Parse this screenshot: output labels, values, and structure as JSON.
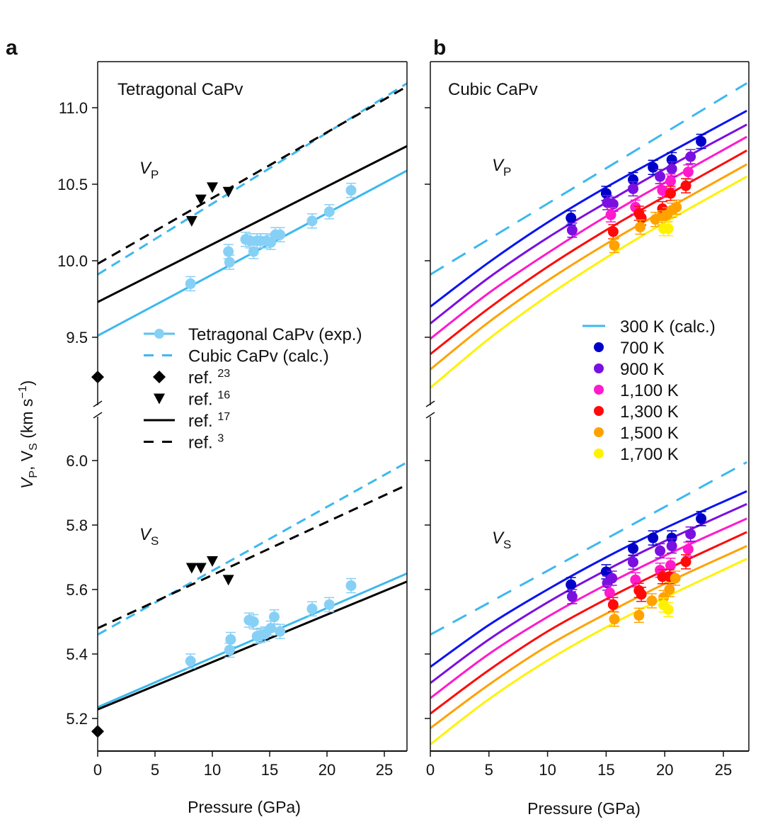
{
  "chart_data": [
    {
      "panel": "a",
      "type": "line",
      "title": "Tetragonal CaPv",
      "xlabel": "Pressure (GPa)",
      "ylabel": "V_P, V_S (km s^-1)",
      "xlim": [
        0,
        27
      ],
      "xticks": [
        0,
        5,
        10,
        15,
        20,
        25
      ],
      "ylim_upper": [
        9.2,
        11.3
      ],
      "ylim_lower": [
        5.1,
        6.1
      ],
      "yticks_upper": [
        "9.5",
        "10.0",
        "10.5",
        "11.0"
      ],
      "yticks_lower": [
        "5.2",
        "5.4",
        "5.6",
        "5.8",
        "6.0"
      ],
      "annotations": [
        {
          "text": "V",
          "sub": "P",
          "x": 2.0,
          "y": 10.6
        },
        {
          "text": "V",
          "sub": "S",
          "x": 2.0,
          "y": 5.77
        }
      ],
      "legend": {
        "placement": "center-right",
        "entries": [
          {
            "label": "Tetragonal CaPv (exp.)",
            "style": "line-marker",
            "color": "#5BC2EE",
            "marker_color": "#87D0F5"
          },
          {
            "label": "Cubic CaPv (calc.)",
            "style": "dashed",
            "color": "#3DB8EE"
          },
          {
            "label": "ref.",
            "ref": "23",
            "style": "diamond",
            "color": "#000000"
          },
          {
            "label": "ref.",
            "ref": "16",
            "style": "triangle-down",
            "color": "#000000"
          },
          {
            "label": "ref.",
            "ref": "17",
            "style": "solid",
            "color": "#000000"
          },
          {
            "label": "ref.",
            "ref": "3",
            "style": "dashed",
            "color": "#000000"
          }
        ]
      },
      "series": [
        {
          "name": "Tetragonal CaPv (exp.) fit VP",
          "kind": "line",
          "color": "#3DB8EE",
          "dash": false,
          "x": [
            0,
            27
          ],
          "y": [
            9.51,
            10.59
          ]
        },
        {
          "name": "Cubic CaPv (calc.) VP",
          "kind": "line",
          "color": "#3DB8EE",
          "dash": true,
          "x": [
            0,
            27
          ],
          "y": [
            9.91,
            11.16
          ]
        },
        {
          "name": "ref. 17 VP",
          "kind": "line",
          "color": "#000000",
          "dash": false,
          "x": [
            0,
            27
          ],
          "y": [
            9.73,
            10.75
          ]
        },
        {
          "name": "ref. 3 VP",
          "kind": "line",
          "color": "#000000",
          "dash": true,
          "x": [
            0,
            27
          ],
          "y": [
            9.98,
            11.14
          ]
        },
        {
          "name": "Tetragonal CaPv (exp.) fit VS",
          "kind": "line",
          "color": "#3DB8EE",
          "dash": false,
          "x": [
            0,
            27
          ],
          "y": [
            5.235,
            5.65
          ]
        },
        {
          "name": "Cubic CaPv (calc.) VS",
          "kind": "line",
          "color": "#3DB8EE",
          "dash": true,
          "x": [
            0,
            27
          ],
          "y": [
            5.46,
            5.995
          ]
        },
        {
          "name": "ref. 17 VS",
          "kind": "line",
          "color": "#000000",
          "dash": false,
          "x": [
            0,
            27
          ],
          "y": [
            5.228,
            5.625
          ]
        },
        {
          "name": "ref. 3 VS",
          "kind": "line",
          "color": "#000000",
          "dash": true,
          "x": [
            0,
            27
          ],
          "y": [
            5.48,
            5.925
          ]
        },
        {
          "name": "Tetragonal CaPv (exp.) VP",
          "kind": "points",
          "marker": "circle",
          "color": "#87D0F5",
          "x": [
            8.1,
            11.4,
            11.5,
            12.9,
            13.3,
            13.6,
            13.9,
            14.2,
            14.7,
            15.1,
            15.5,
            15.9,
            18.7,
            20.2,
            22.1
          ],
          "y": [
            9.85,
            10.06,
            9.99,
            10.14,
            10.13,
            10.06,
            10.13,
            10.13,
            10.13,
            10.12,
            10.17,
            10.17,
            10.26,
            10.32,
            10.46
          ]
        },
        {
          "name": "Tetragonal CaPv (exp.) VS",
          "kind": "points",
          "marker": "circle",
          "color": "#87D0F5",
          "x": [
            8.1,
            11.5,
            11.6,
            13.2,
            13.6,
            13.9,
            14.2,
            14.6,
            15.1,
            15.4,
            15.9,
            18.7,
            20.2,
            22.1
          ],
          "y": [
            5.378,
            5.412,
            5.445,
            5.505,
            5.5,
            5.455,
            5.458,
            5.462,
            5.48,
            5.515,
            5.47,
            5.54,
            5.553,
            5.612
          ]
        },
        {
          "name": "ref. 16 VP",
          "kind": "points",
          "marker": "triangle-down",
          "color": "#000000",
          "x": [
            8.2,
            9.0,
            10.0,
            11.4
          ],
          "y": [
            10.26,
            10.4,
            10.48,
            10.45
          ]
        },
        {
          "name": "ref. 16 VS",
          "kind": "points",
          "marker": "triangle-down",
          "color": "#000000",
          "x": [
            8.2,
            9.0,
            10.0,
            11.4
          ],
          "y": [
            5.667,
            5.667,
            5.688,
            5.63
          ]
        },
        {
          "name": "ref. 23 VP",
          "kind": "points",
          "marker": "diamond",
          "color": "#000000",
          "x": [
            0
          ],
          "y": [
            9.24
          ]
        },
        {
          "name": "ref. 23 VS",
          "kind": "points",
          "marker": "diamond",
          "color": "#000000",
          "x": [
            0
          ],
          "y": [
            5.16
          ]
        }
      ]
    },
    {
      "panel": "b",
      "type": "line",
      "title": "Cubic CaPv",
      "xlabel": "Pressure (GPa)",
      "ylabel": "V_P, V_S (km s^-1)",
      "xlim": [
        0,
        27
      ],
      "xticks": [
        0,
        5,
        10,
        15,
        20,
        25
      ],
      "ylim_upper": [
        9.2,
        11.3
      ],
      "ylim_lower": [
        5.1,
        6.1
      ],
      "annotations": [
        {
          "text": "V",
          "sub": "P",
          "x": 5.3,
          "y": 10.6
        },
        {
          "text": "V",
          "sub": "S",
          "x": 5.3,
          "y": 5.75
        }
      ],
      "legend": {
        "placement": "center-right",
        "entries": [
          {
            "label": "300 K (calc.)",
            "style": "dashed",
            "color": "#3DB8EE"
          },
          {
            "label": "700 K",
            "style": "circle",
            "color": "#0000C8"
          },
          {
            "label": "900 K",
            "style": "circle",
            "color": "#7A10E0"
          },
          {
            "label": "1,100 K",
            "style": "circle",
            "color": "#FF1ACC"
          },
          {
            "label": "1,300 K",
            "style": "circle",
            "color": "#FF0A0A"
          },
          {
            "label": "1,500 K",
            "style": "circle",
            "color": "#FFA200"
          },
          {
            "label": "1,700 K",
            "style": "circle",
            "color": "#FFF200"
          }
        ]
      },
      "series": [
        {
          "name": "300 K (calc.) VP",
          "kind": "line",
          "color": "#3DB8EE",
          "dash": true,
          "x": [
            0,
            27
          ],
          "y": [
            9.91,
            11.16
          ]
        },
        {
          "name": "700 K VP",
          "kind": "curve",
          "color": "#0A14F0",
          "x": [
            0,
            5,
            10,
            15,
            20,
            27
          ],
          "y": [
            9.7,
            9.99,
            10.25,
            10.48,
            10.69,
            10.98
          ]
        },
        {
          "name": "900 K VP",
          "kind": "curve",
          "color": "#7A10E0",
          "x": [
            0,
            5,
            10,
            15,
            20,
            27
          ],
          "y": [
            9.59,
            9.89,
            10.15,
            10.38,
            10.6,
            10.89
          ]
        },
        {
          "name": "1,100 K VP",
          "kind": "curve",
          "color": "#FF1ACC",
          "x": [
            0,
            5,
            10,
            15,
            20,
            27
          ],
          "y": [
            9.49,
            9.79,
            10.05,
            10.29,
            10.51,
            10.81
          ]
        },
        {
          "name": "1,300 K VP",
          "kind": "curve",
          "color": "#FF0A0A",
          "x": [
            0,
            5,
            10,
            15,
            20,
            27
          ],
          "y": [
            9.39,
            9.69,
            9.96,
            10.2,
            10.42,
            10.72
          ]
        },
        {
          "name": "1,500 K VP",
          "kind": "curve",
          "color": "#FFA200",
          "x": [
            0,
            5,
            10,
            15,
            20,
            27
          ],
          "y": [
            9.29,
            9.6,
            9.87,
            10.11,
            10.33,
            10.63
          ]
        },
        {
          "name": "1,700 K VP",
          "kind": "curve",
          "color": "#FFF200",
          "x": [
            0,
            5,
            10,
            15,
            20,
            27
          ],
          "y": [
            9.17,
            9.49,
            9.77,
            10.02,
            10.25,
            10.55
          ]
        },
        {
          "name": "300 K (calc.) VS",
          "kind": "line",
          "color": "#3DB8EE",
          "dash": true,
          "x": [
            0,
            27
          ],
          "y": [
            5.46,
            5.995
          ]
        },
        {
          "name": "700 K VS",
          "kind": "curve",
          "color": "#0A14F0",
          "x": [
            0,
            5,
            10,
            15,
            20,
            27
          ],
          "y": [
            5.36,
            5.49,
            5.6,
            5.7,
            5.79,
            5.905
          ]
        },
        {
          "name": "900 K VS",
          "kind": "curve",
          "color": "#7A10E0",
          "x": [
            0,
            5,
            10,
            15,
            20,
            27
          ],
          "y": [
            5.31,
            5.445,
            5.56,
            5.66,
            5.75,
            5.865
          ]
        },
        {
          "name": "1,100 K VS",
          "kind": "curve",
          "color": "#FF1ACC",
          "x": [
            0,
            5,
            10,
            15,
            20,
            27
          ],
          "y": [
            5.263,
            5.4,
            5.515,
            5.615,
            5.705,
            5.82
          ]
        },
        {
          "name": "1,300 K VS",
          "kind": "curve",
          "color": "#FF0A0A",
          "x": [
            0,
            5,
            10,
            15,
            20,
            27
          ],
          "y": [
            5.215,
            5.35,
            5.47,
            5.57,
            5.66,
            5.778
          ]
        },
        {
          "name": "1,500 K VS",
          "kind": "curve",
          "color": "#FFA200",
          "x": [
            0,
            5,
            10,
            15,
            20,
            27
          ],
          "y": [
            5.17,
            5.305,
            5.425,
            5.525,
            5.618,
            5.735
          ]
        },
        {
          "name": "1,700 K VS",
          "kind": "curve",
          "color": "#FFF200",
          "x": [
            0,
            5,
            10,
            15,
            20,
            27
          ],
          "y": [
            5.12,
            5.26,
            5.38,
            5.483,
            5.575,
            5.695
          ]
        },
        {
          "name": "700 K VP data",
          "kind": "points",
          "marker": "circle",
          "color": "#0000C8",
          "x": [
            12.0,
            15.0,
            17.3,
            19.0,
            20.6,
            23.1
          ],
          "y": [
            10.28,
            10.44,
            10.53,
            10.61,
            10.66,
            10.78
          ]
        },
        {
          "name": "900 K VP data",
          "kind": "points",
          "marker": "circle",
          "color": "#7A10E0",
          "x": [
            12.1,
            15.1,
            15.6,
            17.3,
            19.6,
            20.6,
            22.2
          ],
          "y": [
            10.2,
            10.38,
            10.37,
            10.47,
            10.55,
            10.6,
            10.68
          ]
        },
        {
          "name": "1,100 K VP data",
          "kind": "points",
          "marker": "circle",
          "color": "#FF1ACC",
          "x": [
            15.4,
            17.5,
            19.8,
            20.5,
            22.0
          ],
          "y": [
            10.3,
            10.35,
            10.46,
            10.52,
            10.58
          ]
        },
        {
          "name": "1,300 K VP data",
          "kind": "points",
          "marker": "circle",
          "color": "#FF0A0A",
          "x": [
            15.6,
            17.8,
            18.0,
            19.8,
            20.5,
            21.8
          ],
          "y": [
            10.19,
            10.31,
            10.28,
            10.34,
            10.44,
            10.49
          ]
        },
        {
          "name": "1,500 K VP data",
          "kind": "points",
          "marker": "circle",
          "color": "#FFA200",
          "x": [
            15.7,
            17.9,
            19.2,
            19.8,
            20.2,
            20.6,
            21.0
          ],
          "y": [
            10.1,
            10.22,
            10.27,
            10.28,
            10.3,
            10.33,
            10.35
          ]
        },
        {
          "name": "1,700 K VP data",
          "kind": "points",
          "marker": "circle",
          "color": "#FFF200",
          "x": [
            19.9,
            20.3
          ],
          "y": [
            10.21,
            10.21
          ]
        },
        {
          "name": "700 K VS data",
          "kind": "points",
          "marker": "circle",
          "color": "#0000C8",
          "x": [
            12.0,
            15.0,
            17.3,
            19.0,
            20.6,
            23.1
          ],
          "y": [
            5.615,
            5.655,
            5.727,
            5.76,
            5.76,
            5.82
          ]
        },
        {
          "name": "900 K VS data",
          "kind": "points",
          "marker": "circle",
          "color": "#7A10E0",
          "x": [
            12.1,
            15.1,
            15.5,
            17.3,
            19.6,
            20.6,
            22.2
          ],
          "y": [
            5.578,
            5.62,
            5.635,
            5.685,
            5.72,
            5.735,
            5.772
          ]
        },
        {
          "name": "1,100 K VS data",
          "kind": "points",
          "marker": "circle",
          "color": "#FF1ACC",
          "x": [
            15.3,
            17.5,
            19.6,
            20.5,
            22.0
          ],
          "y": [
            5.59,
            5.63,
            5.66,
            5.675,
            5.725
          ]
        },
        {
          "name": "1,300 K VS data",
          "kind": "points",
          "marker": "circle",
          "color": "#FF0A0A",
          "x": [
            15.6,
            17.8,
            18.0,
            19.8,
            20.4,
            21.8
          ],
          "y": [
            5.553,
            5.597,
            5.585,
            5.64,
            5.64,
            5.686
          ]
        },
        {
          "name": "1,500 K VS data",
          "kind": "points",
          "marker": "circle",
          "color": "#FFA200",
          "x": [
            15.7,
            17.8,
            18.9,
            19.9,
            20.4,
            20.9
          ],
          "y": [
            5.508,
            5.52,
            5.565,
            5.575,
            5.6,
            5.635
          ]
        },
        {
          "name": "1,700 K VS data",
          "kind": "points",
          "marker": "circle",
          "color": "#FFF200",
          "x": [
            19.9,
            20.3
          ],
          "y": [
            5.552,
            5.538
          ]
        }
      ]
    }
  ],
  "labels": {
    "panel_a": "a",
    "panel_b": "b",
    "title_a": "Tetragonal CaPv",
    "title_b": "Cubic CaPv",
    "xlabel": "Pressure (GPa)",
    "ylabel_main": "V",
    "ylabel_sub1": "P",
    "ylabel_sep": ", V",
    "ylabel_sub2": "S",
    "ylabel_units": " (km s",
    "ylabel_exp": "−1",
    "ylabel_close": ")",
    "vp_main": "V",
    "vp_sub": "P",
    "vs_main": "V",
    "vs_sub": "S"
  }
}
